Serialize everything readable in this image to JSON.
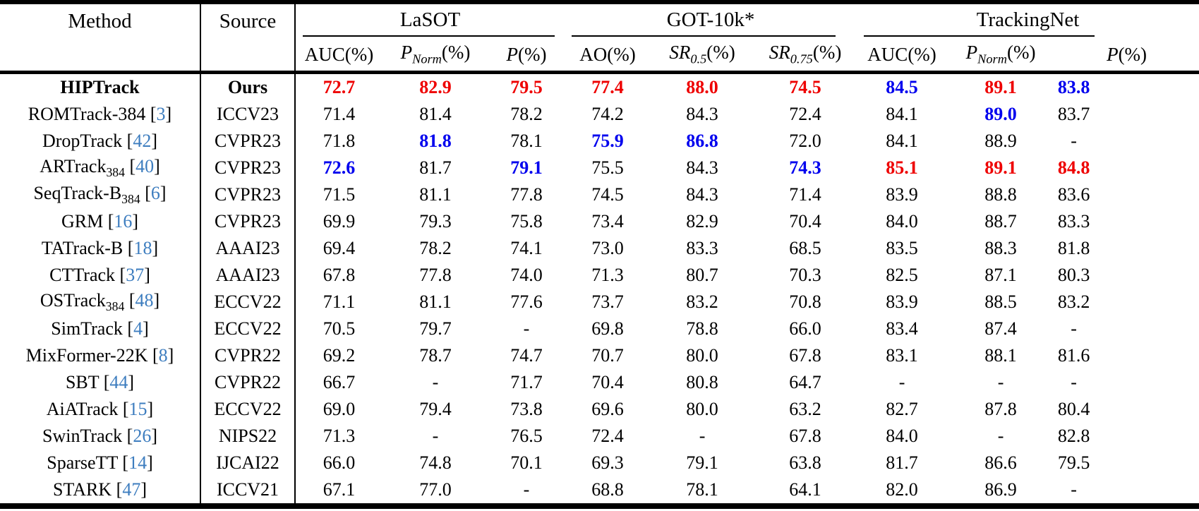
{
  "table": {
    "header": {
      "method_label": "Method",
      "source_label": "Source",
      "groups": [
        {
          "key": "lasot",
          "label": "LaSOT"
        },
        {
          "key": "got10k",
          "label": "GOT-10k*"
        },
        {
          "key": "trackingnet",
          "label": "TrackingNet"
        }
      ]
    },
    "columns": [
      {
        "key": "lasot-auc",
        "label": "AUC",
        "sub": "",
        "after": "(%)",
        "math": false
      },
      {
        "key": "lasot-pnorm",
        "label": "P",
        "sub": "Norm",
        "after": "(%)",
        "math": true
      },
      {
        "key": "lasot-p",
        "label": "P",
        "sub": "",
        "after": "(%)",
        "math": true
      },
      {
        "key": "got-ao",
        "label": "AO",
        "sub": "",
        "after": "(%)",
        "math": false
      },
      {
        "key": "got-sr05",
        "label": "SR",
        "sub": "0.5",
        "after": "(%)",
        "math": true
      },
      {
        "key": "got-sr075",
        "label": "SR",
        "sub": "0.75",
        "after": "(%)",
        "math": true
      },
      {
        "key": "tn-auc",
        "label": "AUC",
        "sub": "",
        "after": "(%)",
        "math": false
      },
      {
        "key": "tn-pnorm",
        "label": "P",
        "sub": "Norm",
        "after": "(%)",
        "math": true
      },
      {
        "key": "tn-p",
        "label": "P",
        "sub": "",
        "after": "(%)",
        "math": true
      }
    ],
    "highlight_colors": {
      "best": "#ee0000",
      "second": "#0000ee",
      "citation": "#3d7dbf"
    },
    "rows": [
      {
        "method": "HIPTrack",
        "method_sub": "",
        "cite": "",
        "source": "Ours",
        "bold": true,
        "values": [
          {
            "v": "72.7",
            "c": "red"
          },
          {
            "v": "82.9",
            "c": "red"
          },
          {
            "v": "79.5",
            "c": "red"
          },
          {
            "v": "77.4",
            "c": "red"
          },
          {
            "v": "88.0",
            "c": "red"
          },
          {
            "v": "74.5",
            "c": "red"
          },
          {
            "v": "84.5",
            "c": "blue"
          },
          {
            "v": "89.1",
            "c": "red"
          },
          {
            "v": "83.8",
            "c": "blue"
          }
        ]
      },
      {
        "method": "ROMTrack-384",
        "method_sub": "",
        "cite": "3",
        "source": "ICCV23",
        "bold": false,
        "values": [
          {
            "v": "71.4",
            "c": ""
          },
          {
            "v": "81.4",
            "c": ""
          },
          {
            "v": "78.2",
            "c": ""
          },
          {
            "v": "74.2",
            "c": ""
          },
          {
            "v": "84.3",
            "c": ""
          },
          {
            "v": "72.4",
            "c": ""
          },
          {
            "v": "84.1",
            "c": ""
          },
          {
            "v": "89.0",
            "c": "blue"
          },
          {
            "v": "83.7",
            "c": ""
          }
        ]
      },
      {
        "method": "DropTrack",
        "method_sub": "",
        "cite": "42",
        "source": "CVPR23",
        "bold": false,
        "values": [
          {
            "v": "71.8",
            "c": ""
          },
          {
            "v": "81.8",
            "c": "blue"
          },
          {
            "v": "78.1",
            "c": ""
          },
          {
            "v": "75.9",
            "c": "blue"
          },
          {
            "v": "86.8",
            "c": "blue"
          },
          {
            "v": "72.0",
            "c": ""
          },
          {
            "v": "84.1",
            "c": ""
          },
          {
            "v": "88.9",
            "c": ""
          },
          {
            "v": "-",
            "c": ""
          }
        ]
      },
      {
        "method": "ARTrack",
        "method_sub": "384",
        "cite": "40",
        "source": "CVPR23",
        "bold": false,
        "values": [
          {
            "v": "72.6",
            "c": "blue"
          },
          {
            "v": "81.7",
            "c": ""
          },
          {
            "v": "79.1",
            "c": "blue"
          },
          {
            "v": "75.5",
            "c": ""
          },
          {
            "v": "84.3",
            "c": ""
          },
          {
            "v": "74.3",
            "c": "blue"
          },
          {
            "v": "85.1",
            "c": "red"
          },
          {
            "v": "89.1",
            "c": "red"
          },
          {
            "v": "84.8",
            "c": "red"
          }
        ]
      },
      {
        "method": "SeqTrack-B",
        "method_sub": "384",
        "cite": "6",
        "source": "CVPR23",
        "bold": false,
        "values": [
          {
            "v": "71.5",
            "c": ""
          },
          {
            "v": "81.1",
            "c": ""
          },
          {
            "v": "77.8",
            "c": ""
          },
          {
            "v": "74.5",
            "c": ""
          },
          {
            "v": "84.3",
            "c": ""
          },
          {
            "v": "71.4",
            "c": ""
          },
          {
            "v": "83.9",
            "c": ""
          },
          {
            "v": "88.8",
            "c": ""
          },
          {
            "v": "83.6",
            "c": ""
          }
        ]
      },
      {
        "method": "GRM",
        "method_sub": "",
        "cite": "16",
        "source": "CVPR23",
        "bold": false,
        "values": [
          {
            "v": "69.9",
            "c": ""
          },
          {
            "v": "79.3",
            "c": ""
          },
          {
            "v": "75.8",
            "c": ""
          },
          {
            "v": "73.4",
            "c": ""
          },
          {
            "v": "82.9",
            "c": ""
          },
          {
            "v": "70.4",
            "c": ""
          },
          {
            "v": "84.0",
            "c": ""
          },
          {
            "v": "88.7",
            "c": ""
          },
          {
            "v": "83.3",
            "c": ""
          }
        ]
      },
      {
        "method": "TATrack-B",
        "method_sub": "",
        "cite": "18",
        "source": "AAAI23",
        "bold": false,
        "values": [
          {
            "v": "69.4",
            "c": ""
          },
          {
            "v": "78.2",
            "c": ""
          },
          {
            "v": "74.1",
            "c": ""
          },
          {
            "v": "73.0",
            "c": ""
          },
          {
            "v": "83.3",
            "c": ""
          },
          {
            "v": "68.5",
            "c": ""
          },
          {
            "v": "83.5",
            "c": ""
          },
          {
            "v": "88.3",
            "c": ""
          },
          {
            "v": "81.8",
            "c": ""
          }
        ]
      },
      {
        "method": "CTTrack",
        "method_sub": "",
        "cite": "37",
        "source": "AAAI23",
        "bold": false,
        "values": [
          {
            "v": "67.8",
            "c": ""
          },
          {
            "v": "77.8",
            "c": ""
          },
          {
            "v": "74.0",
            "c": ""
          },
          {
            "v": "71.3",
            "c": ""
          },
          {
            "v": "80.7",
            "c": ""
          },
          {
            "v": "70.3",
            "c": ""
          },
          {
            "v": "82.5",
            "c": ""
          },
          {
            "v": "87.1",
            "c": ""
          },
          {
            "v": "80.3",
            "c": ""
          }
        ]
      },
      {
        "method": "OSTrack",
        "method_sub": "384",
        "cite": "48",
        "source": "ECCV22",
        "bold": false,
        "values": [
          {
            "v": "71.1",
            "c": ""
          },
          {
            "v": "81.1",
            "c": ""
          },
          {
            "v": "77.6",
            "c": ""
          },
          {
            "v": "73.7",
            "c": ""
          },
          {
            "v": "83.2",
            "c": ""
          },
          {
            "v": "70.8",
            "c": ""
          },
          {
            "v": "83.9",
            "c": ""
          },
          {
            "v": "88.5",
            "c": ""
          },
          {
            "v": "83.2",
            "c": ""
          }
        ]
      },
      {
        "method": "SimTrack",
        "method_sub": "",
        "cite": "4",
        "source": "ECCV22",
        "bold": false,
        "values": [
          {
            "v": "70.5",
            "c": ""
          },
          {
            "v": "79.7",
            "c": ""
          },
          {
            "v": "-",
            "c": ""
          },
          {
            "v": "69.8",
            "c": ""
          },
          {
            "v": "78.8",
            "c": ""
          },
          {
            "v": "66.0",
            "c": ""
          },
          {
            "v": "83.4",
            "c": ""
          },
          {
            "v": "87.4",
            "c": ""
          },
          {
            "v": "-",
            "c": ""
          }
        ]
      },
      {
        "method": "MixFormer-22K",
        "method_sub": "",
        "cite": "8",
        "source": "CVPR22",
        "bold": false,
        "values": [
          {
            "v": "69.2",
            "c": ""
          },
          {
            "v": "78.7",
            "c": ""
          },
          {
            "v": "74.7",
            "c": ""
          },
          {
            "v": "70.7",
            "c": ""
          },
          {
            "v": "80.0",
            "c": ""
          },
          {
            "v": "67.8",
            "c": ""
          },
          {
            "v": "83.1",
            "c": ""
          },
          {
            "v": "88.1",
            "c": ""
          },
          {
            "v": "81.6",
            "c": ""
          }
        ]
      },
      {
        "method": "SBT",
        "method_sub": "",
        "cite": "44",
        "source": "CVPR22",
        "bold": false,
        "values": [
          {
            "v": "66.7",
            "c": ""
          },
          {
            "v": "-",
            "c": ""
          },
          {
            "v": "71.7",
            "c": ""
          },
          {
            "v": "70.4",
            "c": ""
          },
          {
            "v": "80.8",
            "c": ""
          },
          {
            "v": "64.7",
            "c": ""
          },
          {
            "v": "-",
            "c": ""
          },
          {
            "v": "-",
            "c": ""
          },
          {
            "v": "-",
            "c": ""
          }
        ]
      },
      {
        "method": "AiATrack",
        "method_sub": "",
        "cite": "15",
        "source": "ECCV22",
        "bold": false,
        "values": [
          {
            "v": "69.0",
            "c": ""
          },
          {
            "v": "79.4",
            "c": ""
          },
          {
            "v": "73.8",
            "c": ""
          },
          {
            "v": "69.6",
            "c": ""
          },
          {
            "v": "80.0",
            "c": ""
          },
          {
            "v": "63.2",
            "c": ""
          },
          {
            "v": "82.7",
            "c": ""
          },
          {
            "v": "87.8",
            "c": ""
          },
          {
            "v": "80.4",
            "c": ""
          }
        ]
      },
      {
        "method": "SwinTrack",
        "method_sub": "",
        "cite": "26",
        "source": "NIPS22",
        "bold": false,
        "values": [
          {
            "v": "71.3",
            "c": ""
          },
          {
            "v": "-",
            "c": ""
          },
          {
            "v": "76.5",
            "c": ""
          },
          {
            "v": "72.4",
            "c": ""
          },
          {
            "v": "-",
            "c": ""
          },
          {
            "v": "67.8",
            "c": ""
          },
          {
            "v": "84.0",
            "c": ""
          },
          {
            "v": "-",
            "c": ""
          },
          {
            "v": "82.8",
            "c": ""
          }
        ]
      },
      {
        "method": "SparseTT",
        "method_sub": "",
        "cite": "14",
        "source": "IJCAI22",
        "bold": false,
        "values": [
          {
            "v": "66.0",
            "c": ""
          },
          {
            "v": "74.8",
            "c": ""
          },
          {
            "v": "70.1",
            "c": ""
          },
          {
            "v": "69.3",
            "c": ""
          },
          {
            "v": "79.1",
            "c": ""
          },
          {
            "v": "63.8",
            "c": ""
          },
          {
            "v": "81.7",
            "c": ""
          },
          {
            "v": "86.6",
            "c": ""
          },
          {
            "v": "79.5",
            "c": ""
          }
        ]
      },
      {
        "method": "STARK",
        "method_sub": "",
        "cite": "47",
        "source": "ICCV21",
        "bold": false,
        "values": [
          {
            "v": "67.1",
            "c": ""
          },
          {
            "v": "77.0",
            "c": ""
          },
          {
            "v": "-",
            "c": ""
          },
          {
            "v": "68.8",
            "c": ""
          },
          {
            "v": "78.1",
            "c": ""
          },
          {
            "v": "64.1",
            "c": ""
          },
          {
            "v": "82.0",
            "c": ""
          },
          {
            "v": "86.9",
            "c": ""
          },
          {
            "v": "-",
            "c": ""
          }
        ]
      }
    ]
  }
}
